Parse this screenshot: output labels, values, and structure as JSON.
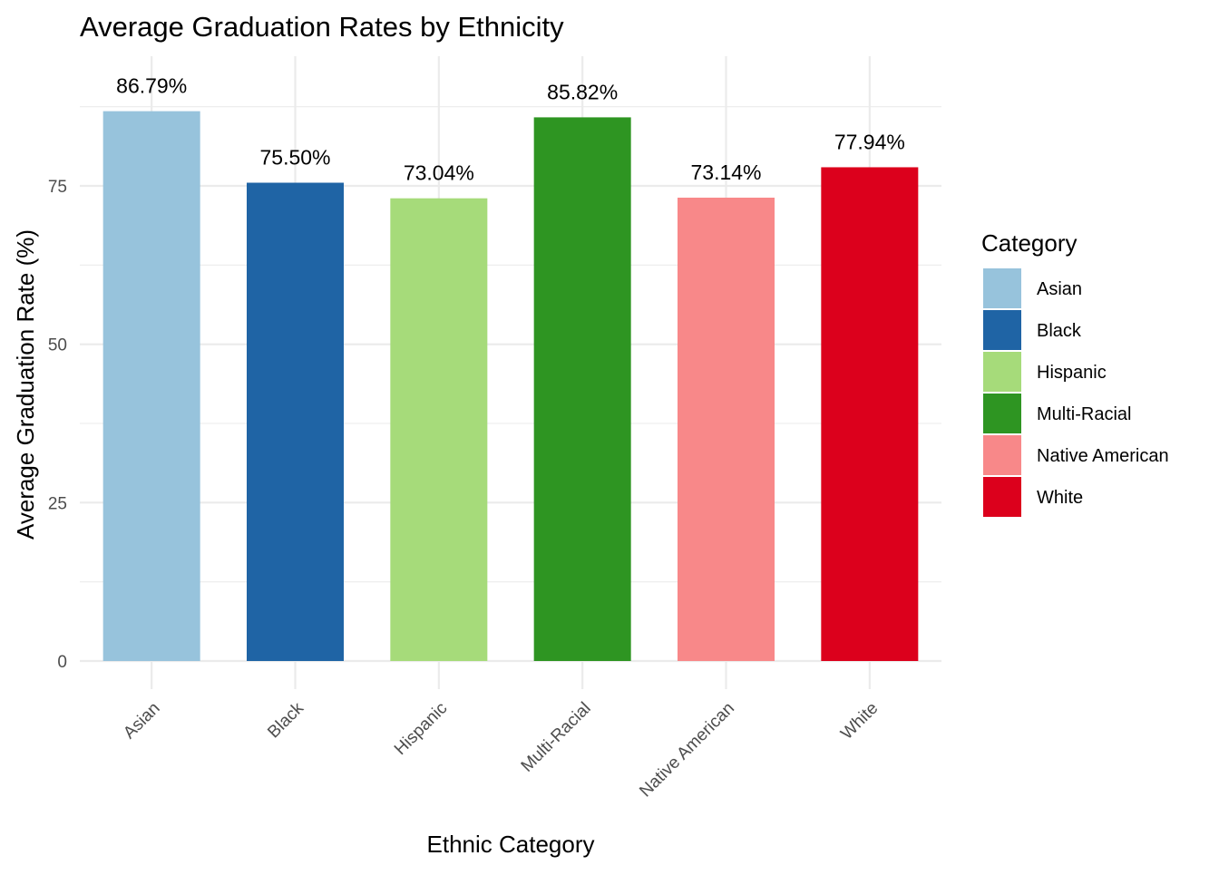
{
  "chart_data": {
    "type": "bar",
    "title": "Average Graduation Rates by Ethnicity",
    "xlabel": "Ethnic Category",
    "ylabel": "Average Graduation Rate (%)",
    "categories": [
      "Asian",
      "Black",
      "Hispanic",
      "Multi-Racial",
      "Native American",
      "White"
    ],
    "values": [
      86.79,
      75.5,
      73.04,
      85.82,
      73.14,
      77.94
    ],
    "data_labels": [
      "86.79%",
      "75.50%",
      "73.04%",
      "85.82%",
      "73.14%",
      "77.94%"
    ],
    "colors": [
      "#97c3dc",
      "#1f64a5",
      "#a6db7a",
      "#2e9522",
      "#f88889",
      "#dc001c"
    ],
    "yticks": [
      0,
      25,
      50,
      75
    ],
    "ytick_labels": [
      "0",
      "25",
      "50",
      "75"
    ],
    "ylim": [
      0,
      90
    ],
    "grid": true,
    "legend": {
      "title": "Category",
      "position": "right",
      "entries": [
        "Asian",
        "Black",
        "Hispanic",
        "Multi-Racial",
        "Native American",
        "White"
      ]
    }
  }
}
